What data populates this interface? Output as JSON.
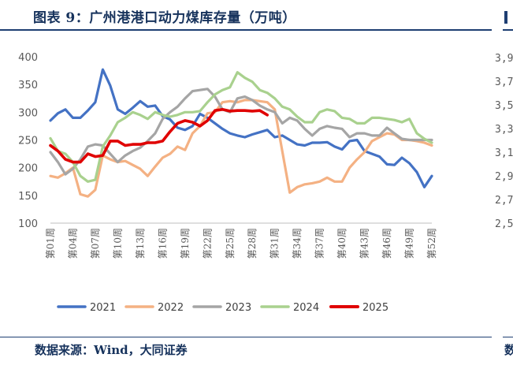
{
  "header": {
    "title": "图表 9：广州港港口动力煤库存量（万吨）"
  },
  "footer": {
    "source": "数据来源：Wind，大同证券",
    "right_fragment_char": "数"
  },
  "right_fragment": {
    "tick_labels": [
      "3,9",
      "3,7",
      "3,5",
      "3,3",
      "3,1",
      "2,9",
      "2,7",
      "2,5"
    ]
  },
  "chart_data": {
    "type": "line",
    "title": "广州港港口动力煤库存量（万吨）",
    "xlabel": "",
    "ylabel": "",
    "ylim": [
      100,
      400
    ],
    "yticks": [
      100,
      150,
      200,
      250,
      300,
      350,
      400
    ],
    "grid": false,
    "legend_position": "bottom",
    "x_tick_labels": [
      "第01周",
      "第04周",
      "第07周",
      "第10周",
      "第13周",
      "第16周",
      "第19周",
      "第22周",
      "第25周",
      "第28周",
      "第31周",
      "第34周",
      "第37周",
      "第40周",
      "第43周",
      "第46周",
      "第49周",
      "第52周"
    ],
    "x_tick_weeks": [
      1,
      4,
      7,
      10,
      13,
      16,
      19,
      22,
      25,
      28,
      31,
      34,
      37,
      40,
      43,
      46,
      49,
      52
    ],
    "series": [
      {
        "name": "2021",
        "color": "#4472c4",
        "weeks": [
          1,
          2,
          3,
          4,
          5,
          6,
          7,
          8,
          9,
          10,
          11,
          12,
          13,
          14,
          15,
          16,
          17,
          18,
          19,
          20,
          21,
          22,
          23,
          24,
          25,
          26,
          27,
          28,
          29,
          30,
          31,
          32,
          33,
          34,
          35,
          36,
          37,
          38,
          39,
          40,
          41,
          42,
          43,
          44,
          45,
          46,
          47,
          48,
          49,
          50,
          51,
          52
        ],
        "values": [
          285,
          298,
          305,
          290,
          290,
          303,
          318,
          377,
          348,
          305,
          297,
          308,
          320,
          310,
          312,
          293,
          287,
          272,
          268,
          275,
          297,
          290,
          280,
          270,
          262,
          258,
          255,
          260,
          264,
          268,
          255,
          258,
          250,
          242,
          240,
          245,
          245,
          246,
          238,
          233,
          248,
          250,
          230,
          225,
          220,
          206,
          205,
          218,
          208,
          192,
          165,
          185
        ]
      },
      {
        "name": "2022",
        "color": "#f4b183",
        "weeks": [
          1,
          2,
          3,
          4,
          5,
          6,
          7,
          8,
          9,
          10,
          11,
          12,
          13,
          14,
          15,
          16,
          17,
          18,
          19,
          20,
          21,
          22,
          23,
          24,
          25,
          26,
          27,
          28,
          29,
          30,
          31,
          32,
          33,
          34,
          35,
          36,
          37,
          38,
          39,
          40,
          41,
          42,
          43,
          44,
          45,
          46,
          47,
          48,
          49,
          50,
          51,
          52
        ],
        "values": [
          185,
          182,
          190,
          200,
          152,
          148,
          160,
          222,
          215,
          210,
          212,
          205,
          198,
          185,
          202,
          218,
          225,
          238,
          232,
          262,
          275,
          298,
          300,
          318,
          320,
          318,
          322,
          322,
          320,
          318,
          305,
          230,
          155,
          165,
          170,
          172,
          175,
          182,
          175,
          175,
          200,
          215,
          228,
          248,
          255,
          262,
          260,
          250,
          250,
          248,
          245,
          240
        ]
      },
      {
        "name": "2023",
        "color": "#a5a5a5",
        "weeks": [
          1,
          2,
          3,
          4,
          5,
          6,
          7,
          8,
          9,
          10,
          11,
          12,
          13,
          14,
          15,
          16,
          17,
          18,
          19,
          20,
          21,
          22,
          23,
          24,
          25,
          26,
          27,
          28,
          29,
          30,
          31,
          32,
          33,
          34,
          35,
          36,
          37,
          38,
          39,
          40,
          41,
          42,
          43,
          44,
          45,
          46,
          47,
          48,
          49,
          50,
          51,
          52
        ],
        "values": [
          228,
          210,
          188,
          198,
          215,
          238,
          242,
          240,
          225,
          210,
          222,
          230,
          236,
          248,
          262,
          288,
          300,
          310,
          325,
          338,
          340,
          342,
          328,
          305,
          300,
          325,
          328,
          322,
          312,
          305,
          300,
          280,
          290,
          285,
          270,
          258,
          270,
          275,
          272,
          270,
          255,
          262,
          262,
          258,
          258,
          272,
          262,
          252,
          250,
          250,
          250,
          250
        ]
      },
      {
        "name": "2024",
        "color": "#a9d18e",
        "weeks": [
          1,
          2,
          3,
          4,
          5,
          6,
          7,
          8,
          9,
          10,
          11,
          12,
          13,
          14,
          15,
          16,
          17,
          18,
          19,
          20,
          21,
          22,
          23,
          24,
          25,
          26,
          27,
          28,
          29,
          30,
          31,
          32,
          33,
          34,
          35,
          36,
          37,
          38,
          39,
          40,
          41,
          42,
          43,
          44,
          45,
          46,
          47,
          48,
          49,
          50,
          51,
          52
        ],
        "values": [
          253,
          230,
          225,
          210,
          185,
          175,
          178,
          238,
          258,
          282,
          290,
          300,
          295,
          288,
          300,
          295,
          292,
          295,
          300,
          300,
          302,
          318,
          332,
          340,
          345,
          372,
          362,
          355,
          340,
          335,
          325,
          310,
          305,
          292,
          282,
          282,
          300,
          305,
          302,
          290,
          288,
          280,
          280,
          290,
          290,
          288,
          286,
          282,
          288,
          262,
          252,
          245
        ]
      },
      {
        "name": "2025",
        "color": "#e00000",
        "weeks": [
          1,
          2,
          3,
          4,
          5,
          6,
          7,
          8,
          9,
          10,
          11,
          12,
          13,
          14,
          15,
          16,
          17,
          18,
          19,
          20,
          21,
          22,
          23,
          24,
          25,
          26,
          27,
          28,
          29,
          30
        ],
        "values": [
          240,
          230,
          215,
          210,
          210,
          225,
          220,
          222,
          248,
          248,
          240,
          242,
          242,
          245,
          245,
          248,
          265,
          280,
          285,
          282,
          275,
          285,
          303,
          305,
          302,
          303,
          303,
          302,
          303,
          295
        ]
      }
    ]
  }
}
